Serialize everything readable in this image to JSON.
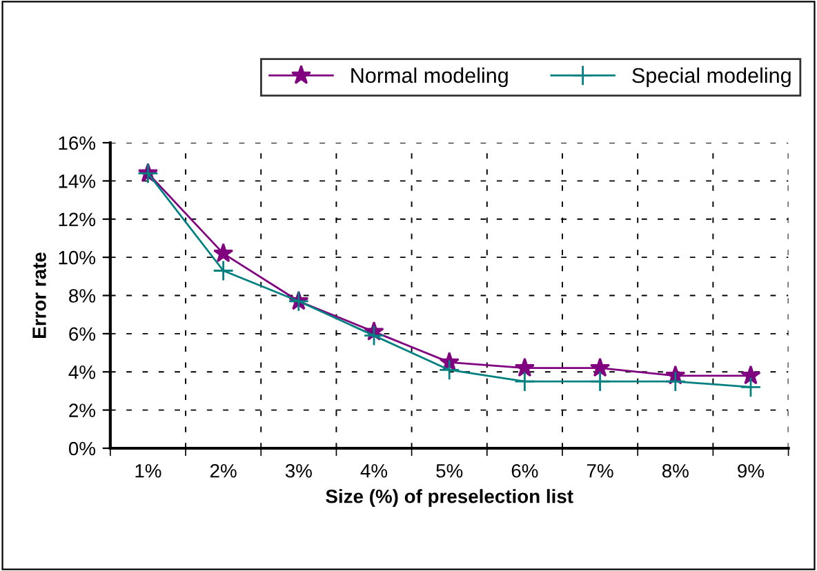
{
  "chart_data": {
    "type": "line",
    "xlabel": "Size (%) of preselection list",
    "ylabel": "Error rate",
    "categories": [
      "1%",
      "2%",
      "3%",
      "4%",
      "5%",
      "6%",
      "7%",
      "8%",
      "9%"
    ],
    "series": [
      {
        "name": "Normal modeling",
        "color": "#800080",
        "marker": "star",
        "values": [
          14.4,
          10.2,
          7.7,
          6.1,
          4.5,
          4.2,
          4.2,
          3.8,
          3.8
        ]
      },
      {
        "name": "Special modeling",
        "color": "#008080",
        "marker": "cross",
        "values": [
          14.4,
          9.3,
          7.7,
          5.9,
          4.1,
          3.5,
          3.5,
          3.5,
          3.2
        ]
      }
    ],
    "ylim": [
      0,
      16
    ],
    "yticks": [
      {
        "value": 0,
        "label": "0%"
      },
      {
        "value": 2,
        "label": "2%"
      },
      {
        "value": 4,
        "label": "4%"
      },
      {
        "value": 6,
        "label": "6%"
      },
      {
        "value": 8,
        "label": "8%"
      },
      {
        "value": 10,
        "label": "10%"
      },
      {
        "value": 12,
        "label": "12%"
      },
      {
        "value": 14,
        "label": "14%"
      },
      {
        "value": 16,
        "label": "16%"
      }
    ],
    "grid": true,
    "legend": "top",
    "line_style": "solid"
  }
}
